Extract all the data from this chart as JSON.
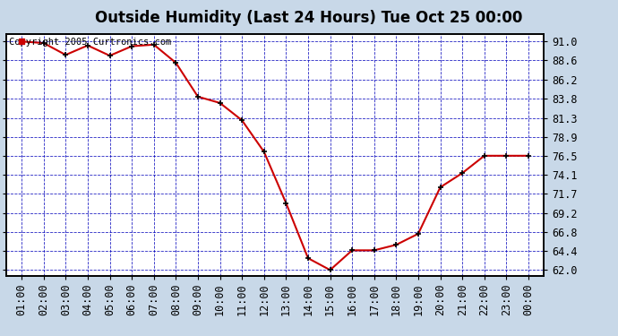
{
  "title": "Outside Humidity (Last 24 Hours) Tue Oct 25 00:00",
  "copyright": "Copyright 2005 Curtronics.com",
  "x_labels": [
    "01:00",
    "02:00",
    "03:00",
    "04:00",
    "05:00",
    "06:00",
    "07:00",
    "08:00",
    "09:00",
    "10:00",
    "11:00",
    "12:00",
    "13:00",
    "14:00",
    "15:00",
    "16:00",
    "17:00",
    "18:00",
    "19:00",
    "20:00",
    "21:00",
    "22:00",
    "23:00",
    "00:00"
  ],
  "x_values": [
    1,
    2,
    3,
    4,
    5,
    6,
    7,
    8,
    9,
    10,
    11,
    12,
    13,
    14,
    15,
    16,
    17,
    18,
    19,
    20,
    21,
    22,
    23,
    24
  ],
  "y_values": [
    91.0,
    90.8,
    89.3,
    90.5,
    89.2,
    90.4,
    90.6,
    88.3,
    84.0,
    83.2,
    81.0,
    77.0,
    70.5,
    63.5,
    62.0,
    64.5,
    64.5,
    65.2,
    66.6,
    72.5,
    74.3,
    76.5,
    76.5,
    76.5
  ],
  "y_ticks": [
    62.0,
    64.4,
    66.8,
    69.2,
    71.7,
    74.1,
    76.5,
    78.9,
    81.3,
    83.8,
    86.2,
    88.6,
    91.0
  ],
  "y_min": 61.3,
  "y_max": 92.0,
  "line_color": "#cc0000",
  "marker_color": "#000000",
  "fig_bg_color": "#c8d8e8",
  "plot_bg_color": "#ffffff",
  "grid_color": "#0000bb",
  "title_color": "#000000",
  "border_color": "#000000",
  "tick_label_color": "#000000",
  "copyright_color": "#000000",
  "title_fontsize": 12,
  "copyright_fontsize": 7.5,
  "tick_fontsize": 8.5
}
